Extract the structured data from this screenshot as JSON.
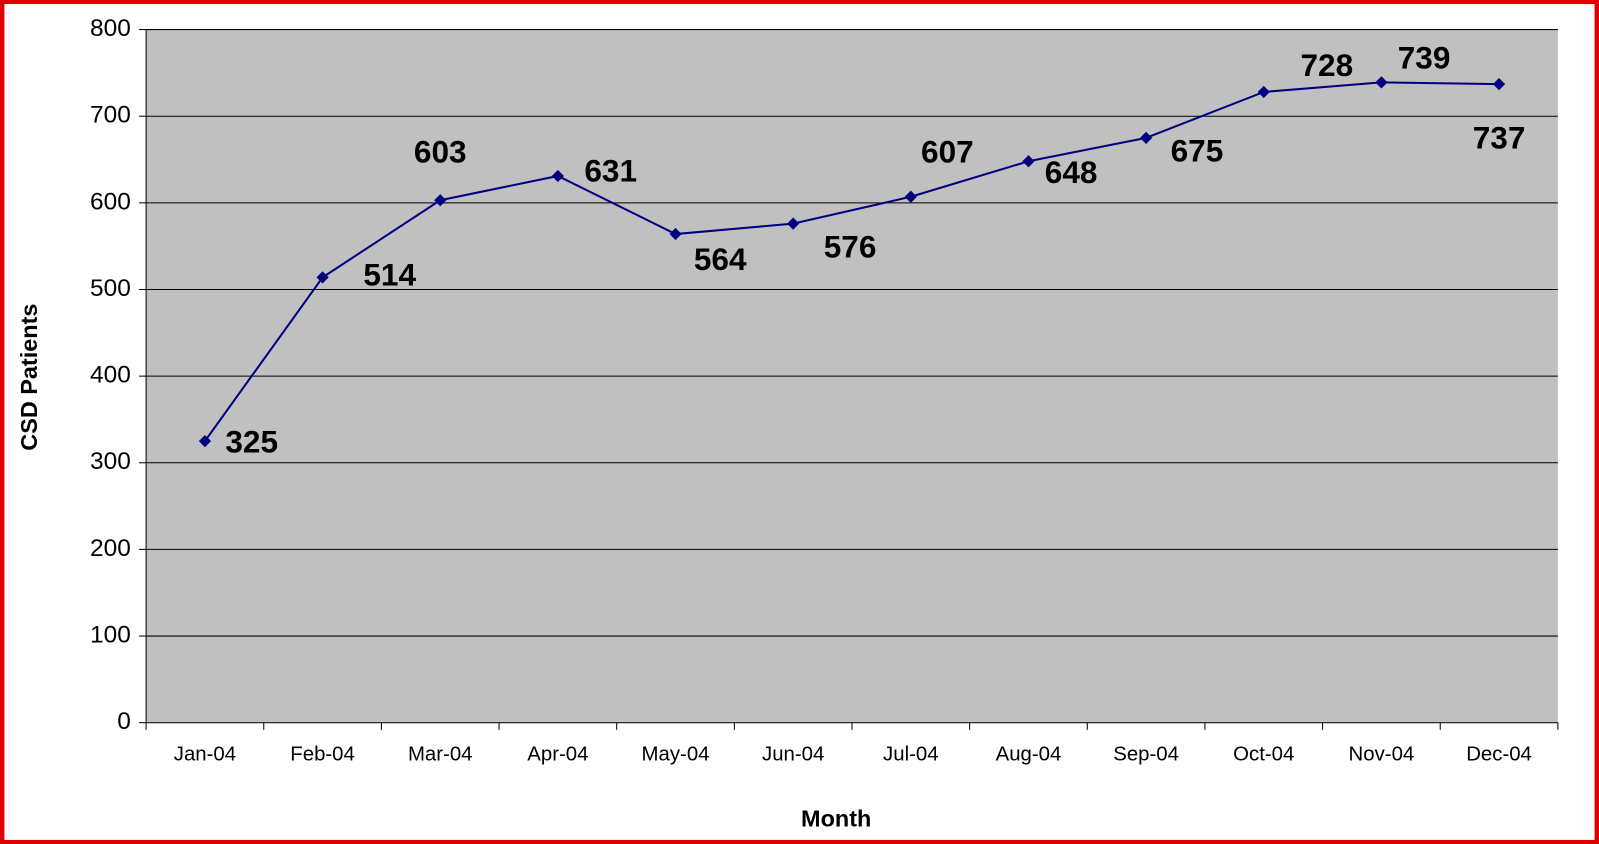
{
  "chart_data": {
    "type": "line",
    "categories": [
      "Jan-04",
      "Feb-04",
      "Mar-04",
      "Apr-04",
      "May-04",
      "Jun-04",
      "Jul-04",
      "Aug-04",
      "Sep-04",
      "Oct-04",
      "Nov-04",
      "Dec-04"
    ],
    "series": [
      {
        "name": "CSD Patients",
        "color": "#000080",
        "values": [
          325,
          514,
          603,
          631,
          564,
          576,
          607,
          648,
          675,
          728,
          739,
          737
        ]
      }
    ],
    "x_label": "Month",
    "y_label": "CSD Patients",
    "ylim": [
      0,
      800
    ],
    "yticks": [
      0,
      100,
      200,
      300,
      400,
      500,
      600,
      700,
      800
    ],
    "grid": true
  }
}
